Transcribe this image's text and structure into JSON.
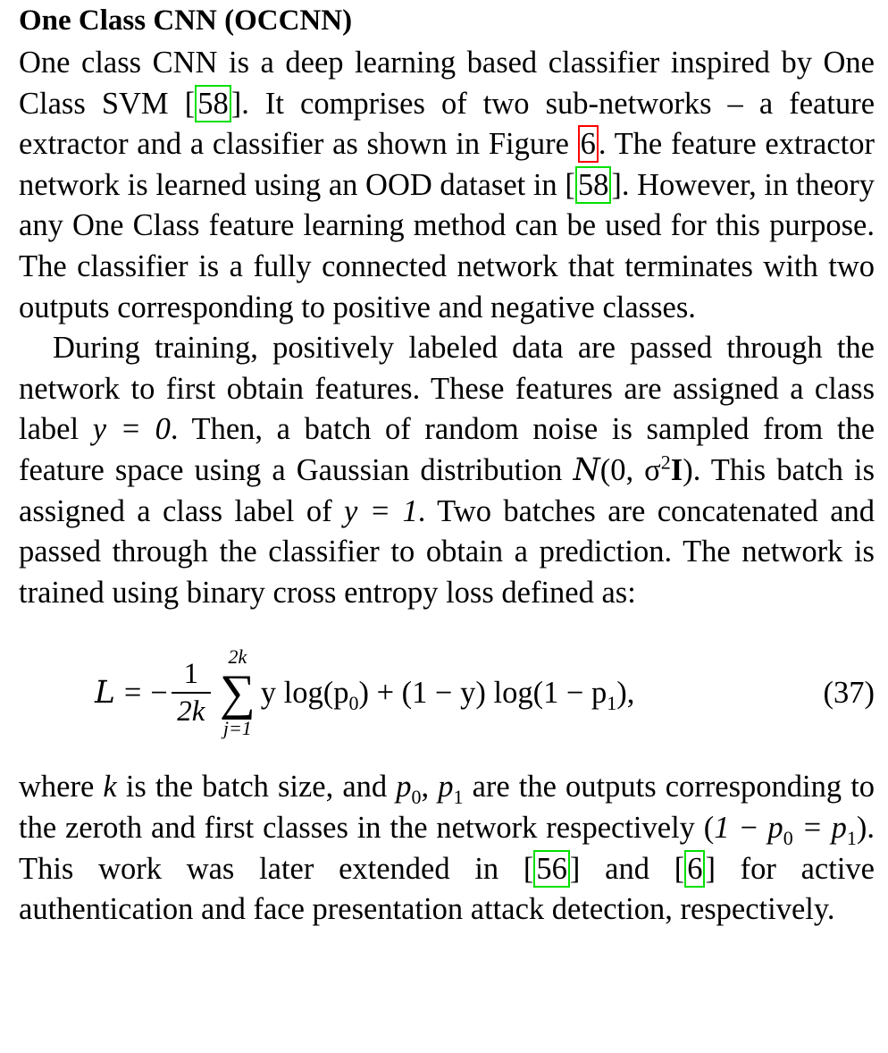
{
  "section_title": "One Class CNN (OCCNN)",
  "para1": {
    "t1": "One class CNN is a deep learning based classifier inspired by One Class SVM ",
    "ref1": "58",
    "t2": ". It comprises of two sub-networks – a feature extractor and a classifier as shown in Figure ",
    "fig": "6",
    "t3": ". The feature extractor network is learned using an OOD dataset in ",
    "ref2": "58",
    "t4": ". However, in theory any One Class feature learning method can be used for this purpose. The classifier is a fully connected network that terminates with two outputs corresponding to positive and negative classes."
  },
  "para2": {
    "t1": "During training, positively labeled data are passed through the network to first obtain features. These features are assigned a class label ",
    "m1": "y = 0",
    "t2": ". Then, a batch of random noise is sampled from the feature space using a Gaussian distribution ",
    "m2_a": "N",
    "m2_b": "(0, σ",
    "m2_sup": "2",
    "m2_c": "I",
    "m2_d": ")",
    "t3": ". This batch is assigned a class label of ",
    "m3": "y = 1",
    "t4": ". Two batches are concatenated and passed through the classifier to obtain a prediction. The network is trained using binary cross entropy loss defined as:"
  },
  "equation": {
    "lhs": "L",
    "eq": "=",
    "minus": "−",
    "num": "1",
    "den": "2k",
    "sum_upper": "2k",
    "sigma": "∑",
    "sum_lower": "j=1",
    "body_a": "y log(p",
    "sub0": "0",
    "body_b": ") + (1 − y) log(1 − p",
    "sub1": "1",
    "body_c": "),",
    "number": "(37)"
  },
  "para3": {
    "t1": "where ",
    "k": "k",
    "t2": " is the batch size, and ",
    "p0": "p",
    "p0_sub": "0",
    "comma": ", ",
    "p1": "p",
    "p1_sub": "1",
    "t3": " are the outputs corresponding to the zeroth and first classes in the network respectively (",
    "m_a": "1 − p",
    "m_a_sub": "0",
    "m_b": " = p",
    "m_b_sub": "1",
    "t4": "). This work was later extended in ",
    "ref3": "56",
    "t5": " and ",
    "ref4": "6",
    "t6": " for active authentication and face presentation attack detection, respectively."
  }
}
